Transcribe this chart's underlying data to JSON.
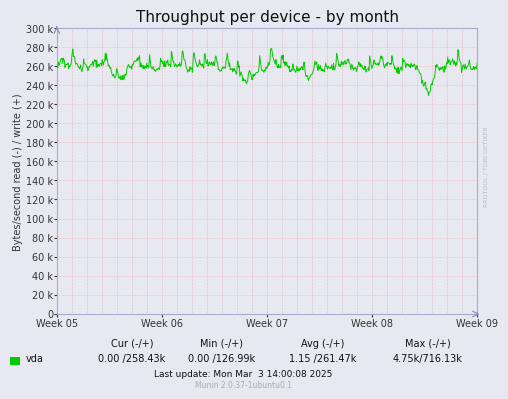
{
  "title": "Throughput per device - by month",
  "ylabel": "Bytes/second read (-) / write (+)",
  "xlabel_ticks": [
    "Week 05",
    "Week 06",
    "Week 07",
    "Week 08",
    "Week 09"
  ],
  "ylim": [
    0,
    300000
  ],
  "ytick_step": 20000,
  "bg_color": "#e8e8f0",
  "plot_bg_color": "#e8e8f0",
  "line_color": "#00cc00",
  "legend_cur": "0.00 /258.43k",
  "legend_min": "0.00 /126.99k",
  "legend_avg": "1.15 /261.47k",
  "legend_max": "4.75k/716.13k",
  "footer": "Last update: Mon Mar  3 14:00:08 2025",
  "footer2": "Munin 2.0.37-1ubuntu0.1",
  "rrdtool_label": "RRDTOOL / TOBI OETIKER",
  "title_fontsize": 11,
  "axis_fontsize": 7,
  "legend_fontsize": 7,
  "footer_fontsize": 6.5,
  "mean_value": 260000,
  "num_points": 700,
  "seed": 1234
}
